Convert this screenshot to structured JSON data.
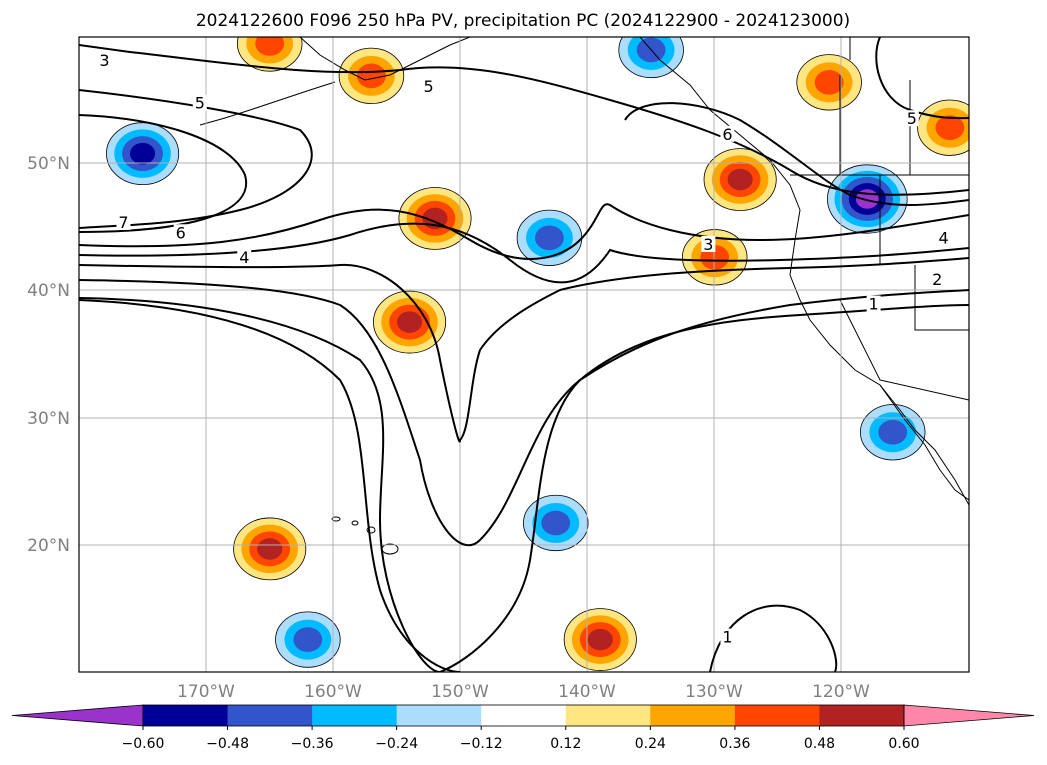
{
  "chart_data": {
    "type": "map-contour",
    "title": "2024122600 F096 250 hPa PV, precipitation PC (2024122900 - 2024123000)",
    "grid": true,
    "lon_ticks": [
      "170°W",
      "160°W",
      "150°W",
      "140°W",
      "130°W",
      "120°W"
    ],
    "lat_ticks": [
      "50°N",
      "40°N",
      "30°N",
      "20°N"
    ],
    "lon_range": [
      -180,
      -110
    ],
    "lat_range": [
      10,
      59
    ],
    "colorbar": {
      "orientation": "horizontal",
      "extend": "both",
      "levels": [
        -0.6,
        -0.48,
        -0.36,
        -0.24,
        -0.12,
        0.12,
        0.24,
        0.36,
        0.48,
        0.6
      ],
      "tick_labels": [
        "−0.60",
        "−0.48",
        "−0.36",
        "−0.24",
        "−0.12",
        "0.12",
        "0.24",
        "0.36",
        "0.48",
        "0.60"
      ],
      "colors": [
        "#9933cc",
        "#000099",
        "#3355cc",
        "#00bbff",
        "#aaddff",
        "#ffffff",
        "#ffe680",
        "#ffa500",
        "#ff4500",
        "#b22222",
        "#ff88aa"
      ]
    },
    "pv_contour_labels": [
      {
        "label": "3",
        "lon": -178,
        "lat": 57
      },
      {
        "label": "5",
        "lon": -170.5,
        "lat": 53.7
      },
      {
        "label": "5",
        "lon": -152.5,
        "lat": 55
      },
      {
        "label": "6",
        "lon": -129,
        "lat": 51.3
      },
      {
        "label": "5",
        "lon": -114.5,
        "lat": 52.5
      },
      {
        "label": "7",
        "lon": -176.5,
        "lat": 44.5
      },
      {
        "label": "6",
        "lon": -172,
        "lat": 43.7
      },
      {
        "label": "4",
        "lon": -167,
        "lat": 41.8
      },
      {
        "label": "3",
        "lon": -130.5,
        "lat": 42.8
      },
      {
        "label": "4",
        "lon": -112,
        "lat": 43.3
      },
      {
        "label": "2",
        "lon": -112.5,
        "lat": 40.1
      },
      {
        "label": "1",
        "lon": -117.5,
        "lat": 38.2
      },
      {
        "label": "1",
        "lon": -129,
        "lat": 12.5
      }
    ],
    "precip_anomalies": [
      {
        "sign": "negative",
        "lon": -175,
        "lat": 50,
        "peak": -0.48
      },
      {
        "sign": "negative",
        "lon": -118,
        "lat": 46.5,
        "peak": -0.6
      },
      {
        "sign": "negative",
        "lon": -143,
        "lat": 43.5,
        "peak": -0.36
      },
      {
        "sign": "negative",
        "lon": -162,
        "lat": 12.5,
        "peak": -0.36
      },
      {
        "sign": "negative",
        "lon": -135,
        "lat": 58,
        "peak": -0.36
      },
      {
        "sign": "negative",
        "lon": -116,
        "lat": 28.5,
        "peak": -0.36
      },
      {
        "sign": "negative",
        "lon": -142.5,
        "lat": 21.5,
        "peak": -0.36
      },
      {
        "sign": "positive",
        "lon": -152,
        "lat": 45,
        "peak": 0.48
      },
      {
        "sign": "positive",
        "lon": -154,
        "lat": 37,
        "peak": 0.48
      },
      {
        "sign": "positive",
        "lon": -165,
        "lat": 19.5,
        "peak": 0.48
      },
      {
        "sign": "positive",
        "lon": -130,
        "lat": 42,
        "peak": 0.36
      },
      {
        "sign": "positive",
        "lon": -128,
        "lat": 48,
        "peak": 0.48
      },
      {
        "sign": "positive",
        "lon": -111.5,
        "lat": 52,
        "peak": 0.36
      },
      {
        "sign": "positive",
        "lon": -139,
        "lat": 12.5,
        "peak": 0.48
      },
      {
        "sign": "positive",
        "lon": -165,
        "lat": 58.5,
        "peak": 0.36
      },
      {
        "sign": "positive",
        "lon": -157,
        "lat": 56,
        "peak": 0.36
      },
      {
        "sign": "positive",
        "lon": -121,
        "lat": 55.5,
        "peak": 0.36
      }
    ]
  }
}
